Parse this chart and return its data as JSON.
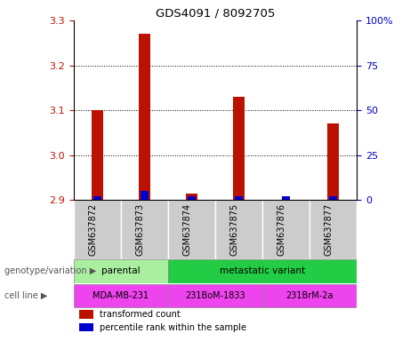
{
  "title": "GDS4091 / 8092705",
  "samples": [
    "GSM637872",
    "GSM637873",
    "GSM637874",
    "GSM637875",
    "GSM637876",
    "GSM637877"
  ],
  "red_values": [
    3.1,
    3.27,
    2.915,
    3.13,
    2.9,
    3.07
  ],
  "blue_pct": [
    2.0,
    5.0,
    2.0,
    2.0,
    2.0,
    2.0
  ],
  "ylim_left": [
    2.9,
    3.3
  ],
  "ylim_right": [
    0,
    100
  ],
  "yticks_left": [
    2.9,
    3.0,
    3.1,
    3.2,
    3.3
  ],
  "yticks_right": [
    0,
    25,
    50,
    75,
    100
  ],
  "ytick_labels_right": [
    "0",
    "25",
    "50",
    "75",
    "100%"
  ],
  "bar_width": 0.25,
  "red_color": "#bb1100",
  "blue_color": "#0000cc",
  "sample_bg": "#cccccc",
  "parental_color": "#aaeea0",
  "metastatic_color": "#22cc44",
  "cell_line_color": "#ee44ee",
  "genotype_groups": [
    {
      "label": "parental",
      "cols": [
        0,
        1
      ]
    },
    {
      "label": "metastatic variant",
      "cols": [
        2,
        3,
        4,
        5
      ]
    }
  ],
  "cell_line_groups": [
    {
      "label": "MDA-MB-231",
      "cols": [
        0,
        1
      ]
    },
    {
      "label": "231BoM-1833",
      "cols": [
        2,
        3
      ]
    },
    {
      "label": "231BrM-2a",
      "cols": [
        4,
        5
      ]
    }
  ],
  "legend_items": [
    {
      "label": "transformed count",
      "color": "#bb1100"
    },
    {
      "label": "percentile rank within the sample",
      "color": "#0000cc"
    }
  ]
}
